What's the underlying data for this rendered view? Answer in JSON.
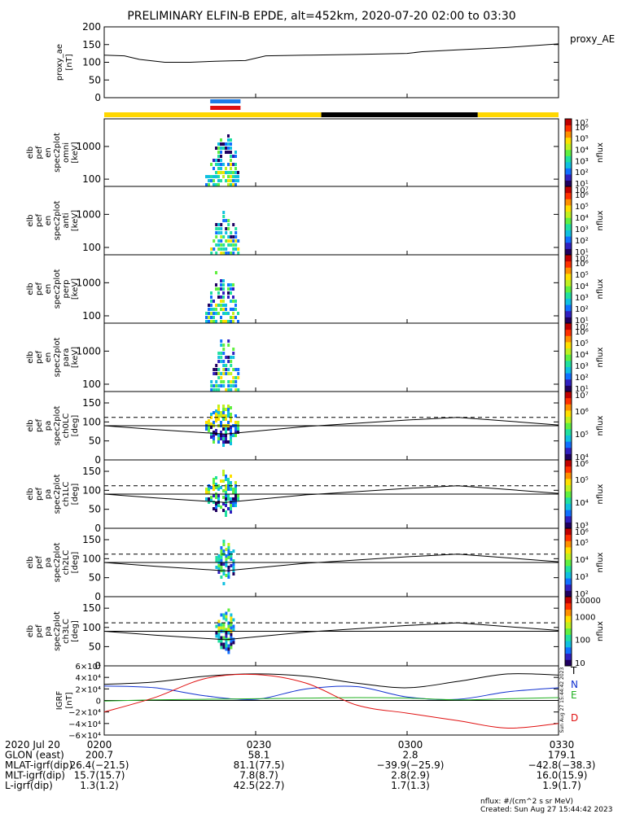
{
  "title": "PRELIMINARY ELFIN-B EPDE, alt=452km, 2020-07-20 02:00 to 03:30",
  "colors": {
    "axis": "#000000",
    "proxy_line": "#000000",
    "bar_yellow": "#FFD700",
    "bar_black": "#000000",
    "bar_blue": "#1E7BE6",
    "bar_red": "#E01010",
    "grf_T": "#000000",
    "grf_N": "#1030D0",
    "grf_E": "#20B020",
    "grf_D": "#E01010"
  },
  "top_bars": [
    {
      "color": "yellow",
      "from": "02:00",
      "to": "02:43"
    },
    {
      "color": "black",
      "from": "02:43",
      "to": "03:14"
    },
    {
      "color": "yellow",
      "from": "03:14",
      "to": "03:30"
    }
  ],
  "conjunction_bars": [
    {
      "color": "blue",
      "from": "02:21",
      "to": "02:27"
    },
    {
      "color": "red",
      "from": "02:21",
      "to": "02:27"
    }
  ],
  "chart_data": [
    {
      "id": "proxy_ae",
      "type": "line",
      "ylabel_lines": [
        "proxy_ae",
        "[nT]"
      ],
      "legend": "proxy_AE",
      "ylim": [
        0,
        200
      ],
      "yticks": [
        "0",
        "50",
        "100",
        "150",
        "200"
      ],
      "x_minutes": [
        0,
        4,
        7,
        12,
        17,
        22,
        25,
        28,
        32,
        40,
        50,
        60,
        63,
        70,
        80,
        90
      ],
      "values": [
        120,
        118,
        108,
        100,
        100,
        103,
        104,
        105,
        118,
        120,
        122,
        125,
        130,
        135,
        142,
        152
      ]
    },
    {
      "id": "omni",
      "type": "heatmap",
      "ylabel_lines": [
        "elb",
        "pef",
        "en",
        "spec2plot",
        "omni",
        "[keV]"
      ],
      "scale": "log",
      "ylim": [
        60,
        7000
      ],
      "yticks": [
        "100",
        "1000"
      ],
      "cbar_ticks": [
        "10¹",
        "10²",
        "10³",
        "10⁴",
        "10⁵",
        "10⁶",
        "10⁷"
      ],
      "cbar_label": "nflux",
      "active_minutes": [
        20,
        27
      ]
    },
    {
      "id": "anti",
      "type": "heatmap",
      "ylabel_lines": [
        "elb",
        "pef",
        "en",
        "spec2plot",
        "anti",
        "[keV]"
      ],
      "scale": "log",
      "ylim": [
        60,
        7000
      ],
      "yticks": [
        "100",
        "1000"
      ],
      "cbar_ticks": [
        "10¹",
        "10²",
        "10³",
        "10⁴",
        "10⁵",
        "10⁶",
        "10⁷"
      ],
      "cbar_label": "nflux",
      "active_minutes": [
        21,
        27
      ]
    },
    {
      "id": "perp",
      "type": "heatmap",
      "ylabel_lines": [
        "elb",
        "pef",
        "en",
        "spec2plot",
        "perp",
        "[keV]"
      ],
      "scale": "log",
      "ylim": [
        60,
        7000
      ],
      "yticks": [
        "100",
        "1000"
      ],
      "cbar_ticks": [
        "10¹",
        "10²",
        "10³",
        "10⁴",
        "10⁵",
        "10⁶",
        "10⁷"
      ],
      "cbar_label": "nflux",
      "active_minutes": [
        20,
        27
      ]
    },
    {
      "id": "para",
      "type": "heatmap",
      "ylabel_lines": [
        "elb",
        "pef",
        "en",
        "spec2plot",
        "para",
        "[keV]"
      ],
      "scale": "log",
      "ylim": [
        60,
        7000
      ],
      "yticks": [
        "100",
        "1000"
      ],
      "cbar_ticks": [
        "10¹",
        "10²",
        "10³",
        "10⁴",
        "10⁵",
        "10⁶",
        "10⁷"
      ],
      "cbar_label": "nflux",
      "active_minutes": [
        21,
        27
      ]
    },
    {
      "id": "ch0LC",
      "type": "heatmap",
      "ylabel_lines": [
        "elb",
        "pef",
        "pa",
        "spec2plot",
        "ch0LC",
        "[deg]"
      ],
      "ylim": [
        0,
        180
      ],
      "yticks": [
        "0",
        "50",
        "100",
        "150"
      ],
      "cbar_ticks": [
        "10⁴",
        "10⁵",
        "10⁶",
        "10⁷"
      ],
      "cbar_label": "nflux",
      "active_minutes": [
        20,
        27
      ]
    },
    {
      "id": "ch1LC",
      "type": "heatmap",
      "ylabel_lines": [
        "elb",
        "pef",
        "pa",
        "spec2plot",
        "ch1LC",
        "[deg]"
      ],
      "ylim": [
        0,
        180
      ],
      "yticks": [
        "0",
        "50",
        "100",
        "150"
      ],
      "cbar_ticks": [
        "10³",
        "10⁴",
        "10⁵",
        "10⁶"
      ],
      "cbar_label": "nflux",
      "active_minutes": [
        20,
        27
      ]
    },
    {
      "id": "ch2LC",
      "type": "heatmap",
      "ylabel_lines": [
        "elb",
        "pef",
        "pa",
        "spec2plot",
        "ch2LC",
        "[deg]"
      ],
      "ylim": [
        0,
        180
      ],
      "yticks": [
        "0",
        "50",
        "100",
        "150"
      ],
      "cbar_ticks": [
        "10²",
        "10³",
        "10⁴",
        "10⁵",
        "10⁶"
      ],
      "cbar_label": "nflux",
      "active_minutes": [
        22,
        26
      ]
    },
    {
      "id": "ch3LC",
      "type": "heatmap",
      "ylabel_lines": [
        "elb",
        "pef",
        "pa",
        "spec2plot",
        "ch3LC",
        "[deg]"
      ],
      "ylim": [
        0,
        180
      ],
      "yticks": [
        "0",
        "50",
        "100",
        "150"
      ],
      "cbar_ticks": [
        "10",
        "100",
        "1000",
        "10000"
      ],
      "cbar_label": "nflux",
      "active_minutes": [
        22,
        26
      ]
    },
    {
      "id": "grf",
      "type": "line",
      "ylabel_lines": [
        "IGRF",
        "[nT]"
      ],
      "ylim": [
        -60000,
        60000
      ],
      "yticks": [
        "6×10⁴",
        "4×10⁴",
        "2×10⁴",
        "0",
        "−2×10⁴",
        "−4×10⁴",
        "−6×10⁴"
      ],
      "series": [
        {
          "name": "T",
          "color": "grf_T",
          "x_minutes": [
            0,
            10,
            20,
            30,
            40,
            50,
            60,
            70,
            80,
            90
          ],
          "values": [
            28000,
            32000,
            42000,
            46000,
            42000,
            30000,
            22000,
            33000,
            46000,
            44000
          ]
        },
        {
          "name": "N",
          "color": "grf_N",
          "x_minutes": [
            0,
            10,
            20,
            30,
            40,
            50,
            60,
            70,
            80,
            90
          ],
          "values": [
            25000,
            22000,
            8000,
            2000,
            20000,
            24000,
            6000,
            2000,
            15000,
            22000
          ]
        },
        {
          "name": "E",
          "color": "grf_E",
          "x_minutes": [
            0,
            10,
            20,
            30,
            40,
            50,
            60,
            70,
            80,
            90
          ],
          "values": [
            -1000,
            1000,
            2000,
            3000,
            4000,
            5000,
            4000,
            1000,
            3000,
            5000
          ]
        },
        {
          "name": "D",
          "color": "grf_D",
          "x_minutes": [
            0,
            10,
            20,
            30,
            40,
            50,
            60,
            70,
            80,
            90
          ],
          "values": [
            -20000,
            5000,
            38000,
            45000,
            30000,
            -8000,
            -22000,
            -35000,
            -48000,
            -40000
          ]
        }
      ],
      "stamp": "Sun Aug 27 15:44:42 2023"
    }
  ],
  "lc_dashed_deg": 112,
  "lc_solid_curve": {
    "x_minutes": [
      0,
      10,
      24,
      40,
      60,
      70,
      90
    ],
    "values": [
      90,
      80,
      68,
      88,
      105,
      112,
      92
    ]
  },
  "xaxis": {
    "ticks": [
      {
        "minute": 0,
        "label": "0200"
      },
      {
        "minute": 30,
        "label": "0230"
      },
      {
        "minute": 60,
        "label": "0300"
      },
      {
        "minute": 90,
        "label": "0330"
      }
    ]
  },
  "bottom_table": [
    {
      "label": "2020 Jul 20",
      "values": [
        "0200",
        "0230",
        "0300",
        "0330"
      ]
    },
    {
      "label": "GLON (east)",
      "values": [
        "200.7",
        "58.1",
        "2.8",
        "179.1"
      ]
    },
    {
      "label": "MLAT-igrf(dip)",
      "values": [
        "26.4(−21.5)",
        "81.1(77.5)",
        "−39.9(−25.9)",
        "−42.8(−38.3)"
      ]
    },
    {
      "label": "MLT-igrf(dip)",
      "values": [
        "15.7(15.7)",
        "7.8(8.7)",
        "2.8(2.9)",
        "16.0(15.9)"
      ]
    },
    {
      "label": "L-igrf(dip)",
      "values": [
        "1.3(1.2)",
        "42.5(22.7)",
        "1.7(1.3)",
        "1.9(1.7)"
      ]
    }
  ],
  "footer": {
    "units": "nflux: #/(cm^2 s sr MeV)",
    "created": "Created: Sun Aug 27 15:44:42 2023"
  }
}
